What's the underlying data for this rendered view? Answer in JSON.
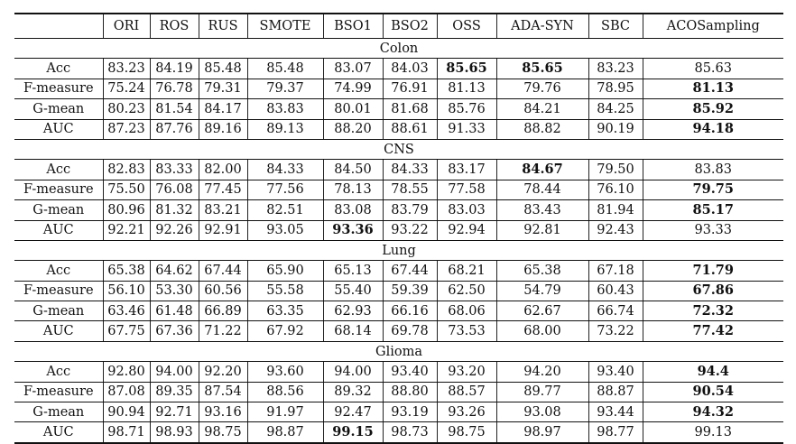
{
  "table": {
    "columns": [
      "",
      "ORI",
      "ROS",
      "RUS",
      "SMOTE",
      "BSO1",
      "BSO2",
      "OSS",
      "ADA-SYN",
      "SBC",
      "ACOSampling"
    ],
    "sections": [
      {
        "name": "Colon",
        "rows": [
          {
            "metric": "Acc",
            "values": [
              "83.23",
              "84.19",
              "85.48",
              "85.48",
              "83.07",
              "84.03",
              "85.65",
              "85.65",
              "83.23",
              "85.63"
            ],
            "bold": [
              6,
              7
            ]
          },
          {
            "metric": "F-measure",
            "values": [
              "75.24",
              "76.78",
              "79.31",
              "79.37",
              "74.99",
              "76.91",
              "81.13",
              "79.76",
              "78.95",
              "81.13"
            ],
            "bold": [
              9
            ]
          },
          {
            "metric": "G-mean",
            "values": [
              "80.23",
              "81.54",
              "84.17",
              "83.83",
              "80.01",
              "81.68",
              "85.76",
              "84.21",
              "84.25",
              "85.92"
            ],
            "bold": [
              9
            ]
          },
          {
            "metric": "AUC",
            "values": [
              "87.23",
              "87.76",
              "89.16",
              "89.13",
              "88.20",
              "88.61",
              "91.33",
              "88.82",
              "90.19",
              "94.18"
            ],
            "bold": [
              9
            ]
          }
        ]
      },
      {
        "name": "CNS",
        "rows": [
          {
            "metric": "Acc",
            "values": [
              "82.83",
              "83.33",
              "82.00",
              "84.33",
              "84.50",
              "84.33",
              "83.17",
              "84.67",
              "79.50",
              "83.83"
            ],
            "bold": [
              7
            ]
          },
          {
            "metric": "F-measure",
            "values": [
              "75.50",
              "76.08",
              "77.45",
              "77.56",
              "78.13",
              "78.55",
              "77.58",
              "78.44",
              "76.10",
              "79.75"
            ],
            "bold": [
              9
            ]
          },
          {
            "metric": "G-mean",
            "values": [
              "80.96",
              "81.32",
              "83.21",
              "82.51",
              "83.08",
              "83.79",
              "83.03",
              "83.43",
              "81.94",
              "85.17"
            ],
            "bold": [
              9
            ]
          },
          {
            "metric": "AUC",
            "values": [
              "92.21",
              "92.26",
              "92.91",
              "93.05",
              "93.36",
              "93.22",
              "92.94",
              "92.81",
              "92.43",
              "93.33"
            ],
            "bold": [
              4
            ]
          }
        ]
      },
      {
        "name": "Lung",
        "rows": [
          {
            "metric": "Acc",
            "values": [
              "65.38",
              "64.62",
              "67.44",
              "65.90",
              "65.13",
              "67.44",
              "68.21",
              "65.38",
              "67.18",
              "71.79"
            ],
            "bold": [
              9
            ]
          },
          {
            "metric": "F-measure",
            "values": [
              "56.10",
              "53.30",
              "60.56",
              "55.58",
              "55.40",
              "59.39",
              "62.50",
              "54.79",
              "60.43",
              "67.86"
            ],
            "bold": [
              9
            ]
          },
          {
            "metric": "G-mean",
            "values": [
              "63.46",
              "61.48",
              "66.89",
              "63.35",
              "62.93",
              "66.16",
              "68.06",
              "62.67",
              "66.74",
              "72.32"
            ],
            "bold": [
              9
            ]
          },
          {
            "metric": "AUC",
            "values": [
              "67.75",
              "67.36",
              "71.22",
              "67.92",
              "68.14",
              "69.78",
              "73.53",
              "68.00",
              "73.22",
              "77.42"
            ],
            "bold": [
              9
            ]
          }
        ]
      },
      {
        "name": "Glioma",
        "rows": [
          {
            "metric": "Acc",
            "values": [
              "92.80",
              "94.00",
              "92.20",
              "93.60",
              "94.00",
              "93.40",
              "93.20",
              "94.20",
              "93.40",
              "94.4"
            ],
            "bold": [
              9
            ]
          },
          {
            "metric": "F-measure",
            "values": [
              "87.08",
              "89.35",
              "87.54",
              "88.56",
              "89.32",
              "88.80",
              "88.57",
              "89.77",
              "88.87",
              "90.54"
            ],
            "bold": [
              9
            ]
          },
          {
            "metric": "G-mean",
            "values": [
              "90.94",
              "92.71",
              "93.16",
              "91.97",
              "92.47",
              "93.19",
              "93.26",
              "93.08",
              "93.44",
              "94.32"
            ],
            "bold": [
              9
            ]
          },
          {
            "metric": "AUC",
            "values": [
              "98.71",
              "98.93",
              "98.75",
              "98.87",
              "99.15",
              "98.73",
              "98.75",
              "98.97",
              "98.77",
              "99.13"
            ],
            "bold": [
              4
            ]
          }
        ]
      }
    ]
  }
}
